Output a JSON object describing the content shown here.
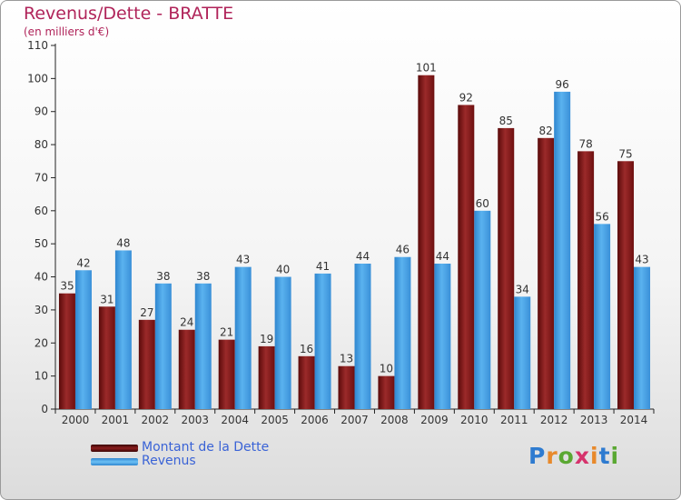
{
  "header": {
    "title": "Revenus/Dette - BRATTE",
    "subtitle": "(en milliers d'€)"
  },
  "colors": {
    "dette": "#8b1d1d",
    "revenus": "#4aa3e6",
    "title": "#b0245a",
    "legend_text": "#3a63d6"
  },
  "chart_data": {
    "type": "bar",
    "title": "Revenus/Dette - BRATTE",
    "subtitle": "(en milliers d'€)",
    "categories": [
      "2000",
      "2001",
      "2002",
      "2003",
      "2004",
      "2005",
      "2006",
      "2007",
      "2008",
      "2009",
      "2010",
      "2011",
      "2012",
      "2013",
      "2014"
    ],
    "series": [
      {
        "name": "Montant de la Dette",
        "values": [
          35,
          31,
          27,
          24,
          21,
          19,
          16,
          13,
          10,
          101,
          92,
          85,
          82,
          78,
          75
        ]
      },
      {
        "name": "Revenus",
        "values": [
          42,
          48,
          38,
          38,
          43,
          40,
          41,
          44,
          46,
          44,
          60,
          34,
          96,
          56,
          43
        ]
      }
    ],
    "ylim": [
      0,
      110
    ],
    "yticks": [
      0,
      10,
      20,
      30,
      40,
      50,
      60,
      70,
      80,
      90,
      100,
      110
    ],
    "grid": false,
    "legend_position": "bottom-left"
  },
  "legend": {
    "items": [
      "Montant de la Dette",
      "Revenus"
    ]
  },
  "logo": {
    "text": "Proxiti",
    "letters": [
      "P",
      "r",
      "o",
      "x",
      "i",
      "t",
      "i"
    ],
    "letter_colors": [
      "#2e7bd0",
      "#e8892b",
      "#5aa832",
      "#d6336c",
      "#e8892b",
      "#2e7bd0",
      "#5aa832"
    ]
  }
}
